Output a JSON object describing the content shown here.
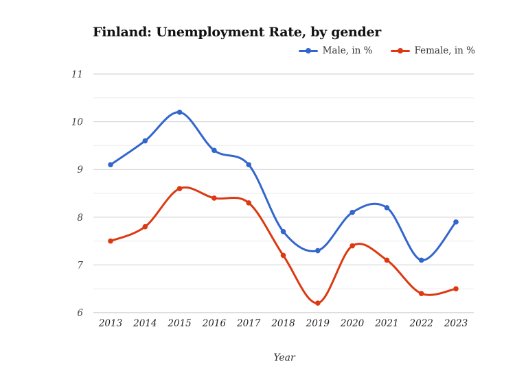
{
  "chart_data": {
    "type": "line",
    "title": "Finland: Unemployment Rate, by gender",
    "xlabel": "Year",
    "ylabel": "",
    "x": [
      "2013",
      "2014",
      "2015",
      "2016",
      "2017",
      "2018",
      "2019",
      "2020",
      "2021",
      "2022",
      "2023"
    ],
    "ylim": [
      6,
      11
    ],
    "yticks": [
      6,
      7,
      8,
      9,
      10,
      11
    ],
    "grid": true,
    "legend_position": "top-right",
    "smooth": true,
    "series": [
      {
        "name": "Male, in %",
        "color": "#3366cc",
        "values": [
          9.1,
          9.6,
          10.2,
          9.4,
          9.1,
          7.7,
          7.3,
          8.1,
          8.2,
          7.1,
          7.9
        ]
      },
      {
        "name": "Female, in %",
        "color": "#dc3912",
        "values": [
          7.5,
          7.8,
          8.6,
          8.4,
          8.3,
          7.2,
          6.2,
          7.4,
          7.1,
          6.4,
          6.5
        ]
      }
    ]
  }
}
